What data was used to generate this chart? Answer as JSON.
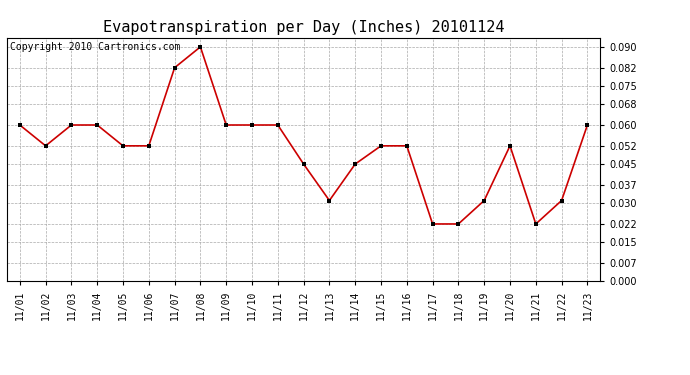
{
  "title": "Evapotranspiration per Day (Inches) 20101124",
  "copyright_text": "Copyright 2010 Cartronics.com",
  "dates": [
    "11/01",
    "11/02",
    "11/03",
    "11/04",
    "11/05",
    "11/06",
    "11/07",
    "11/08",
    "11/09",
    "11/10",
    "11/11",
    "11/12",
    "11/13",
    "11/14",
    "11/15",
    "11/16",
    "11/17",
    "11/18",
    "11/19",
    "11/20",
    "11/21",
    "11/22",
    "11/23"
  ],
  "values": [
    0.06,
    0.052,
    0.06,
    0.06,
    0.052,
    0.052,
    0.082,
    0.09,
    0.06,
    0.06,
    0.06,
    0.045,
    0.031,
    0.045,
    0.052,
    0.052,
    0.022,
    0.022,
    0.031,
    0.052,
    0.022,
    0.031,
    0.06
  ],
  "line_color": "#cc0000",
  "marker": "s",
  "marker_size": 4,
  "marker_color": "#000000",
  "background_color": "#ffffff",
  "plot_bg_color": "#ffffff",
  "grid_color": "#aaaaaa",
  "ylim": [
    0.0,
    0.0936
  ],
  "yticks": [
    0.0,
    0.007,
    0.015,
    0.022,
    0.03,
    0.037,
    0.045,
    0.052,
    0.06,
    0.068,
    0.075,
    0.082,
    0.09
  ],
  "title_fontsize": 11,
  "tick_fontsize": 7,
  "copyright_fontsize": 7
}
